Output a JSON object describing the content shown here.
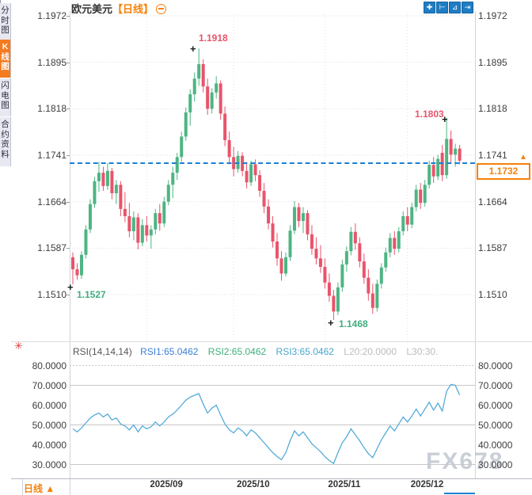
{
  "window": {
    "watermark": "FX678"
  },
  "sidebar": {
    "tabs": [
      {
        "label": "分时图",
        "active": false
      },
      {
        "label": "K线图",
        "active": true
      },
      {
        "label": "闪电图",
        "active": false
      },
      {
        "label": "合约资料",
        "active": false
      }
    ]
  },
  "header": {
    "symbol": "欧元美元",
    "period_tag": "【日线】",
    "collapse_icon": "minus-circle"
  },
  "toolbar": {
    "icons": [
      {
        "name": "crosshair-icon",
        "glyph": "✚"
      },
      {
        "name": "axis-left-scale-icon",
        "glyph": "⊢"
      },
      {
        "name": "axis-right-scale-icon",
        "glyph": "⊿"
      },
      {
        "name": "pan-to-latest-icon",
        "glyph": "⇥"
      }
    ]
  },
  "price_axis": {
    "labels": [
      "1.1972",
      "1.1895",
      "1.1818",
      "1.1741",
      "1.1664",
      "1.1587",
      "1.1510"
    ]
  },
  "current_price": {
    "value": "1.1732",
    "arrow": "▲"
  },
  "annotations": {
    "high_peak": "1.1918",
    "high_recent": "1.1803",
    "low_start": "1.1527",
    "low_bottom": "1.1468",
    "marker": "+"
  },
  "rsi_panel": {
    "header": {
      "name": "RSI(14,14,14)",
      "rsi1": "RSI1:65.0462",
      "rsi2": "RSI2:65.0462",
      "rsi3": "RSI3:65.0462",
      "l20": "L20:20.0000",
      "l30": "L30:30."
    },
    "axis_labels": [
      "80.0000",
      "70.0000",
      "60.0000",
      "50.0000",
      "40.0000",
      "30.0000"
    ],
    "settings_icon": "✳"
  },
  "x_axis": {
    "labels": [
      "2025/09",
      "2025/10",
      "2025/11",
      "2025/12"
    ]
  },
  "bottom_bar": {
    "period_label": "日线",
    "arrow": "▲"
  },
  "colors": {
    "up_candle": "#4db583",
    "down_candle": "#e8546b",
    "rsi_line": "#55abd9",
    "accent_orange": "#f5820b",
    "current_price_line": "#1b7fd4",
    "grid_dotted": "#e2e2e8",
    "rsi_grid": "#c8c8c8",
    "icon_blue": "#1f7dc4"
  },
  "chart_data": {
    "type": "candlestick",
    "title": "欧元美元 日线 (EUR/USD Daily)",
    "price_ticks": [
      1.1972,
      1.1895,
      1.1818,
      1.1741,
      1.1664,
      1.1587,
      1.151
    ],
    "price_ylim": [
      1.144,
      1.198
    ],
    "current_price": 1.1732,
    "marked_high_peak": 1.1918,
    "marked_high_recent": 1.1803,
    "marked_low_start": 1.1527,
    "marked_low_bottom": 1.1468,
    "x_ticks": [
      {
        "label": "2025/09",
        "index": 17
      },
      {
        "label": "2025/10",
        "index": 37
      },
      {
        "label": "2025/11",
        "index": 58
      },
      {
        "label": "2025/12",
        "index": 77
      }
    ],
    "candles": [
      [
        1.1572,
        1.158,
        1.1527,
        1.1552
      ],
      [
        1.1552,
        1.1562,
        1.1535,
        1.1542
      ],
      [
        1.1542,
        1.1582,
        1.1536,
        1.1576
      ],
      [
        1.1576,
        1.1625,
        1.157,
        1.1618
      ],
      [
        1.1618,
        1.1668,
        1.1612,
        1.166
      ],
      [
        1.166,
        1.1705,
        1.1654,
        1.1698
      ],
      [
        1.1698,
        1.173,
        1.168,
        1.1712
      ],
      [
        1.1712,
        1.1722,
        1.1682,
        1.169
      ],
      [
        1.169,
        1.1728,
        1.1684,
        1.1715
      ],
      [
        1.1715,
        1.172,
        1.1668,
        1.1678
      ],
      [
        1.1678,
        1.17,
        1.166,
        1.1692
      ],
      [
        1.1692,
        1.1698,
        1.164,
        1.1652
      ],
      [
        1.1652,
        1.168,
        1.163,
        1.164
      ],
      [
        1.164,
        1.1662,
        1.1605,
        1.1615
      ],
      [
        1.1615,
        1.1648,
        1.16,
        1.1638
      ],
      [
        1.1638,
        1.1645,
        1.1585,
        1.1596
      ],
      [
        1.1596,
        1.1635,
        1.159,
        1.1625
      ],
      [
        1.1625,
        1.164,
        1.1598,
        1.1608
      ],
      [
        1.1608,
        1.1625,
        1.1586,
        1.1618
      ],
      [
        1.1618,
        1.1652,
        1.161,
        1.1645
      ],
      [
        1.1645,
        1.166,
        1.1616,
        1.1628
      ],
      [
        1.1628,
        1.1672,
        1.1622,
        1.1664
      ],
      [
        1.1664,
        1.17,
        1.1658,
        1.1692
      ],
      [
        1.1692,
        1.1722,
        1.167,
        1.1712
      ],
      [
        1.1712,
        1.1745,
        1.17,
        1.1738
      ],
      [
        1.1738,
        1.178,
        1.173,
        1.1772
      ],
      [
        1.1772,
        1.182,
        1.1765,
        1.1812
      ],
      [
        1.1812,
        1.185,
        1.179,
        1.1842
      ],
      [
        1.1842,
        1.1878,
        1.183,
        1.1868
      ],
      [
        1.1868,
        1.1918,
        1.1856,
        1.1892
      ],
      [
        1.1892,
        1.19,
        1.1845,
        1.1855
      ],
      [
        1.1855,
        1.1868,
        1.1808,
        1.1818
      ],
      [
        1.1818,
        1.1852,
        1.181,
        1.1845
      ],
      [
        1.1845,
        1.1872,
        1.1835,
        1.186
      ],
      [
        1.186,
        1.1865,
        1.18,
        1.181
      ],
      [
        1.181,
        1.1822,
        1.1756,
        1.1766
      ],
      [
        1.1766,
        1.178,
        1.1726,
        1.1738
      ],
      [
        1.1738,
        1.1755,
        1.1706,
        1.1718
      ],
      [
        1.1718,
        1.1748,
        1.1712,
        1.174
      ],
      [
        1.174,
        1.1746,
        1.1706,
        1.1715
      ],
      [
        1.1715,
        1.173,
        1.1686,
        1.1696
      ],
      [
        1.1696,
        1.1732,
        1.169,
        1.1726
      ],
      [
        1.1726,
        1.1734,
        1.1698,
        1.1708
      ],
      [
        1.1708,
        1.1716,
        1.1672,
        1.1682
      ],
      [
        1.1682,
        1.1695,
        1.1645,
        1.1656
      ],
      [
        1.1656,
        1.1668,
        1.1618,
        1.1628
      ],
      [
        1.1628,
        1.164,
        1.1588,
        1.1598
      ],
      [
        1.1598,
        1.1612,
        1.1558,
        1.157
      ],
      [
        1.157,
        1.1582,
        1.1533,
        1.1545
      ],
      [
        1.1545,
        1.158,
        1.154,
        1.1572
      ],
      [
        1.1572,
        1.1625,
        1.1566,
        1.1616
      ],
      [
        1.1616,
        1.1665,
        1.161,
        1.1655
      ],
      [
        1.1655,
        1.1662,
        1.1622,
        1.1632
      ],
      [
        1.1632,
        1.1655,
        1.1612,
        1.1645
      ],
      [
        1.1645,
        1.165,
        1.16,
        1.161
      ],
      [
        1.161,
        1.1625,
        1.1576,
        1.1586
      ],
      [
        1.1586,
        1.1605,
        1.156,
        1.157
      ],
      [
        1.157,
        1.1592,
        1.1546,
        1.1556
      ],
      [
        1.1556,
        1.157,
        1.152,
        1.153
      ],
      [
        1.153,
        1.1545,
        1.1498,
        1.1508
      ],
      [
        1.1508,
        1.1518,
        1.1468,
        1.1482
      ],
      [
        1.1482,
        1.153,
        1.1476,
        1.1522
      ],
      [
        1.1522,
        1.1568,
        1.1515,
        1.156
      ],
      [
        1.156,
        1.159,
        1.1548,
        1.1582
      ],
      [
        1.1582,
        1.1622,
        1.1575,
        1.1614
      ],
      [
        1.1614,
        1.1628,
        1.1584,
        1.1595
      ],
      [
        1.1595,
        1.1605,
        1.1555,
        1.1565
      ],
      [
        1.1565,
        1.1578,
        1.1528,
        1.1538
      ],
      [
        1.1538,
        1.1552,
        1.15,
        1.1512
      ],
      [
        1.1512,
        1.1528,
        1.1478,
        1.1488
      ],
      [
        1.1488,
        1.1535,
        1.1482,
        1.1528
      ],
      [
        1.1528,
        1.1562,
        1.152,
        1.1555
      ],
      [
        1.1555,
        1.1588,
        1.1548,
        1.158
      ],
      [
        1.158,
        1.1612,
        1.1572,
        1.1604
      ],
      [
        1.1604,
        1.1615,
        1.1576,
        1.1586
      ],
      [
        1.1586,
        1.1622,
        1.158,
        1.1615
      ],
      [
        1.1615,
        1.1648,
        1.1608,
        1.164
      ],
      [
        1.164,
        1.1655,
        1.1615,
        1.1626
      ],
      [
        1.1626,
        1.1662,
        1.162,
        1.1655
      ],
      [
        1.1655,
        1.1692,
        1.1648,
        1.1684
      ],
      [
        1.1684,
        1.1695,
        1.1652,
        1.1662
      ],
      [
        1.1662,
        1.17,
        1.1656,
        1.1692
      ],
      [
        1.1692,
        1.1732,
        1.1686,
        1.1725
      ],
      [
        1.1725,
        1.1738,
        1.1695,
        1.1706
      ],
      [
        1.1706,
        1.1742,
        1.17,
        1.1735
      ],
      [
        1.1745,
        1.1758,
        1.1698,
        1.1708
      ],
      [
        1.1708,
        1.1803,
        1.1702,
        1.1768
      ],
      [
        1.1768,
        1.1782,
        1.1728,
        1.1742
      ],
      [
        1.1742,
        1.176,
        1.1722,
        1.1752
      ],
      [
        1.1752,
        1.1758,
        1.1726,
        1.1732
      ]
    ],
    "rsi": {
      "name": "RSI(14,14,14)",
      "current": 65.0462,
      "ylim": [
        25,
        85
      ],
      "ticks": [
        80,
        70,
        60,
        50,
        40,
        30
      ],
      "level_lines": [
        70,
        50,
        30
      ],
      "values": [
        48,
        46.5,
        48.5,
        51,
        53.5,
        55,
        56,
        54,
        55.5,
        52.5,
        53.5,
        50.5,
        49.5,
        47.5,
        50,
        46.5,
        49.5,
        48,
        49,
        51.5,
        49.5,
        51.5,
        54,
        55.5,
        57.5,
        60,
        62.5,
        64,
        65,
        65.8,
        60.5,
        56,
        58.5,
        60,
        55,
        50.5,
        47.5,
        46,
        48.5,
        47,
        44.5,
        47.5,
        46,
        43.5,
        41,
        38.5,
        36,
        34,
        32.5,
        36,
        42,
        47,
        44.5,
        46.5,
        43.5,
        40.5,
        38.5,
        36.5,
        34,
        32,
        30.5,
        36,
        41,
        44,
        48,
        45,
        42,
        38.5,
        35.5,
        33.5,
        38,
        42.5,
        46,
        49.5,
        47,
        50.5,
        54,
        51.5,
        54.5,
        58,
        54.5,
        58,
        61.5,
        57.5,
        61,
        57,
        67,
        70.5,
        70,
        65.05
      ]
    }
  }
}
